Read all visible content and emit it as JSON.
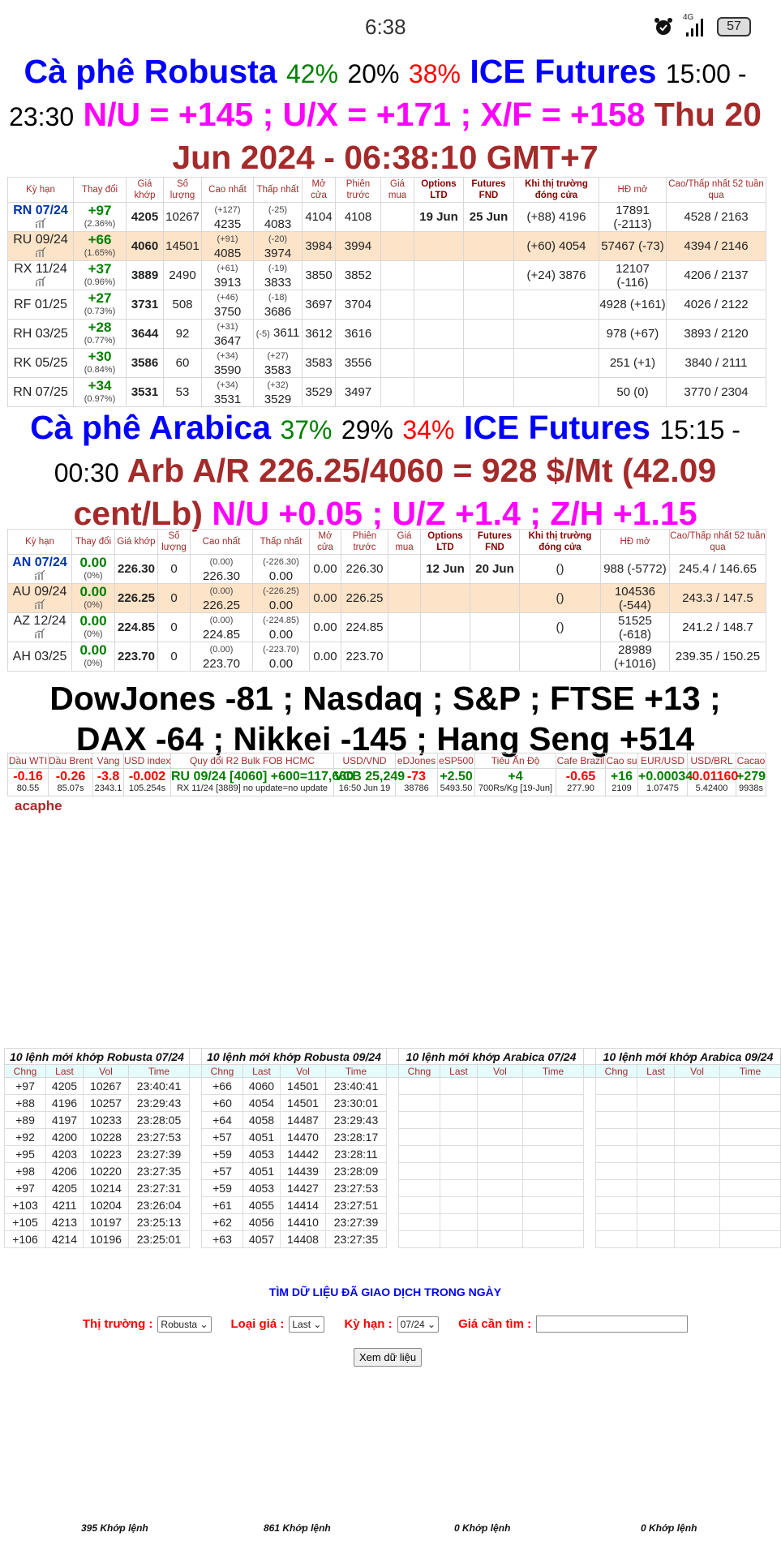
{
  "status_bar": {
    "time": "6:38",
    "network": "4G",
    "battery": "57"
  },
  "robusta_header": {
    "name": "Cà phê Robusta",
    "p1": "42%",
    "p2": "20%",
    "p3": "38%",
    "exchange": "ICE Futures",
    "hours": "15:00 - 23:30",
    "spreads": "N/U = +145 ; U/X = +171 ; X/F = +158",
    "datetime": "Thu 20 Jun 2024 - 06:38:10 GMT+7"
  },
  "futures_columns": [
    "Kỳ hạn",
    "Thay đổi",
    "Giá khớp",
    "Số lượng",
    "Cao nhất",
    "Thấp nhất",
    "Mở cửa",
    "Phiên trước",
    "Giá mua",
    "Options LTD",
    "Futures FND",
    "Khi thị trường đóng cửa",
    "HĐ mở",
    "Cao/Thấp nhất 52 tuần qua"
  ],
  "robusta_rows": [
    {
      "sym": "RN 07/24",
      "chg": "+97",
      "pct": "(2.36%)",
      "last": "4205",
      "vol": "10267",
      "high_d": "(+127)",
      "high": "4235",
      "low_d": "(-25)",
      "low": "4083",
      "open": "4104",
      "prev": "4108",
      "bid": "",
      "ltd": "19 Jun",
      "fnd": "25 Jun",
      "close": "(+88) 4196",
      "oi": "17891 (-2113)",
      "range": "4528 / 2163",
      "chart": true
    },
    {
      "sym": "RU 09/24",
      "chg": "+66",
      "pct": "(1.65%)",
      "last": "4060",
      "vol": "14501",
      "high_d": "(+91)",
      "high": "4085",
      "low_d": "(-20)",
      "low": "3974",
      "open": "3984",
      "prev": "3994",
      "bid": "",
      "ltd": "",
      "fnd": "",
      "close": "(+60) 4054",
      "oi": "57467 (-73)",
      "range": "4394 / 2146",
      "chart": true
    },
    {
      "sym": "RX 11/24",
      "chg": "+37",
      "pct": "(0.96%)",
      "last": "3889",
      "vol": "2490",
      "high_d": "(+61)",
      "high": "3913",
      "low_d": "(-19)",
      "low": "3833",
      "open": "3850",
      "prev": "3852",
      "bid": "",
      "ltd": "",
      "fnd": "",
      "close": "(+24) 3876",
      "oi": "12107 (-116)",
      "range": "4206 / 2137",
      "chart": true
    },
    {
      "sym": "RF 01/25",
      "chg": "+27",
      "pct": "(0.73%)",
      "last": "3731",
      "vol": "508",
      "high_d": "(+46)",
      "high": "3750",
      "low_d": "(-18)",
      "low": "3686",
      "open": "3697",
      "prev": "3704",
      "bid": "",
      "ltd": "",
      "fnd": "",
      "close": "",
      "oi": "4928 (+161)",
      "range": "4026 / 2122",
      "chart": false
    },
    {
      "sym": "RH 03/25",
      "chg": "+28",
      "pct": "(0.77%)",
      "last": "3644",
      "vol": "92",
      "high_d": "(+31)",
      "high": "3647",
      "low_d": "(-5)",
      "low": "3611",
      "low_inline": true,
      "open": "3612",
      "prev": "3616",
      "bid": "",
      "ltd": "",
      "fnd": "",
      "close": "",
      "oi": "978 (+67)",
      "range": "3893 / 2120",
      "chart": false
    },
    {
      "sym": "RK 05/25",
      "chg": "+30",
      "pct": "(0.84%)",
      "last": "3586",
      "vol": "60",
      "high_d": "(+34)",
      "high": "3590",
      "low_d": "(+27)",
      "low": "3583",
      "open": "3583",
      "prev": "3556",
      "bid": "",
      "ltd": "",
      "fnd": "",
      "close": "",
      "oi": "251 (+1)",
      "range": "3840 / 2111",
      "chart": false
    },
    {
      "sym": "RN 07/25",
      "chg": "+34",
      "pct": "(0.97%)",
      "last": "3531",
      "vol": "53",
      "high_d": "(+34)",
      "high": "3531",
      "low_d": "(+32)",
      "low": "3529",
      "open": "3529",
      "prev": "3497",
      "bid": "",
      "ltd": "",
      "fnd": "",
      "close": "",
      "oi": "50 (0)",
      "range": "3770 / 2304",
      "chart": false
    }
  ],
  "arabica_header": {
    "name": "Cà phê Arabica",
    "p1": "37%",
    "p2": "29%",
    "p3": "34%",
    "exchange": "ICE Futures",
    "hours": "15:15 - 00:30",
    "conversion": "Arb A/R 226.25/4060 = 928 $/Mt (42.09 cent/Lb)",
    "spreads": "N/U +0.05 ; U/Z +1.4 ; Z/H +1.15"
  },
  "arabica_rows": [
    {
      "sym": "AN 07/24",
      "chg": "0.00",
      "pct": "(0%)",
      "last": "226.30",
      "vol": "0",
      "high_d": "(0.00)",
      "high": "226.30",
      "low_d": "(-226.30)",
      "low": "0.00",
      "open": "0.00",
      "prev": "226.30",
      "bid": "",
      "ltd": "12 Jun",
      "fnd": "20 Jun",
      "close": "()",
      "oi": "988 (-5772)",
      "range": "245.4 / 146.65",
      "chart": true
    },
    {
      "sym": "AU 09/24",
      "chg": "0.00",
      "pct": "(0%)",
      "last": "226.25",
      "vol": "0",
      "high_d": "(0.00)",
      "high": "226.25",
      "low_d": "(-226.25)",
      "low": "0.00",
      "open": "0.00",
      "prev": "226.25",
      "bid": "",
      "ltd": "",
      "fnd": "",
      "close": "()",
      "oi": "104536 (-544)",
      "range": "243.3 / 147.5",
      "chart": true
    },
    {
      "sym": "AZ 12/24",
      "chg": "0.00",
      "pct": "(0%)",
      "last": "224.85",
      "vol": "0",
      "high_d": "(0.00)",
      "high": "224.85",
      "low_d": "(-224.85)",
      "low": "0.00",
      "open": "0.00",
      "prev": "224.85",
      "bid": "",
      "ltd": "",
      "fnd": "",
      "close": "()",
      "oi": "51525 (-618)",
      "range": "241.2 / 148.7",
      "chart": true
    },
    {
      "sym": "AH 03/25",
      "chg": "0.00",
      "pct": "(0%)",
      "last": "223.70",
      "vol": "0",
      "high_d": "(0.00)",
      "high": "223.70",
      "low_d": "(-223.70)",
      "low": "0.00",
      "open": "0.00",
      "prev": "223.70",
      "bid": "",
      "ltd": "",
      "fnd": "",
      "close": "",
      "oi": "28989 (+1016)",
      "range": "239.35 / 150.25",
      "chart": false
    }
  ],
  "indices_header": "DowJones -81 ; Nasdaq ; S&P ; FTSE +13 ; DAX -64 ; Nikkei -145 ; Hang Seng +514",
  "misc": [
    {
      "label": "Dầu WTI",
      "value": "-0.16",
      "sub": "80.55",
      "color": "#ff0000"
    },
    {
      "label": "Dầu Brent",
      "value": "-0.26",
      "sub": "85.07s",
      "color": "#ff0000"
    },
    {
      "label": "Vàng",
      "value": "-3.8",
      "sub": "2343.1",
      "color": "#ff0000"
    },
    {
      "label": "USD index",
      "value": "-0.002",
      "sub": "105.254s",
      "color": "#ff0000"
    },
    {
      "label": "Quy đổi R2 Bulk FOB HCMC",
      "value": "RU 09/24 [4060] +600=117,660",
      "sub": "RX 11/24 [3889] no update=no update",
      "color": "#008000"
    },
    {
      "label": "USD/VND",
      "value": "VCB 25,249",
      "sub": "16:50 Jun 19",
      "color": "#008000"
    },
    {
      "label": "eDJones",
      "value": "-73",
      "sub": "38786",
      "color": "#ff0000"
    },
    {
      "label": "eSP500",
      "value": "+2.50",
      "sub": "5493.50",
      "color": "#008000"
    },
    {
      "label": "Tiêu Ấn Độ",
      "value": "+4",
      "sub": "700Rs/Kg [19-Jun]",
      "color": "#008000"
    },
    {
      "label": "Cafe Brazil",
      "value": "-0.65",
      "sub": "277.90",
      "color": "#ff0000"
    },
    {
      "label": "Cao su",
      "value": "+16",
      "sub": "2109",
      "color": "#008000"
    },
    {
      "label": "EUR/USD",
      "value": "+0.00034",
      "sub": "1.07475",
      "color": "#008000"
    },
    {
      "label": "USD/BRL",
      "value": "-0.01160",
      "sub": "5.42400",
      "color": "#ff0000"
    },
    {
      "label": "Cacao",
      "value": "+279",
      "sub": "9938s",
      "color": "#008000"
    }
  ],
  "brand": "acaphe",
  "trades": {
    "columns": [
      "Chng",
      "Last",
      "Vol",
      "Time"
    ],
    "blocks": [
      {
        "title": "10 lệnh mới khớp Robusta 07/24",
        "footer": "395 Khớp lệnh",
        "rows": [
          [
            "+97",
            "4205",
            "10267",
            "23:40:41"
          ],
          [
            "+88",
            "4196",
            "10257",
            "23:29:43"
          ],
          [
            "+89",
            "4197",
            "10233",
            "23:28:05"
          ],
          [
            "+92",
            "4200",
            "10228",
            "23:27:53"
          ],
          [
            "+95",
            "4203",
            "10223",
            "23:27:39"
          ],
          [
            "+98",
            "4206",
            "10220",
            "23:27:35"
          ],
          [
            "+97",
            "4205",
            "10214",
            "23:27:31"
          ],
          [
            "+103",
            "4211",
            "10204",
            "23:26:04"
          ],
          [
            "+105",
            "4213",
            "10197",
            "23:25:13"
          ],
          [
            "+106",
            "4214",
            "10196",
            "23:25:01"
          ]
        ]
      },
      {
        "title": "10 lệnh mới khớp Robusta 09/24",
        "footer": "861 Khớp lệnh",
        "rows": [
          [
            "+66",
            "4060",
            "14501",
            "23:40:41"
          ],
          [
            "+60",
            "4054",
            "14501",
            "23:30:01"
          ],
          [
            "+64",
            "4058",
            "14487",
            "23:29:43"
          ],
          [
            "+57",
            "4051",
            "14470",
            "23:28:17"
          ],
          [
            "+59",
            "4053",
            "14442",
            "23:28:11"
          ],
          [
            "+57",
            "4051",
            "14439",
            "23:28:09"
          ],
          [
            "+59",
            "4053",
            "14427",
            "23:27:53"
          ],
          [
            "+61",
            "4055",
            "14414",
            "23:27:51"
          ],
          [
            "+62",
            "4056",
            "14410",
            "23:27:39"
          ],
          [
            "+63",
            "4057",
            "14408",
            "23:27:35"
          ]
        ]
      },
      {
        "title": "10 lệnh mới khớp Arabica 07/24",
        "footer": "0 Khớp lệnh",
        "rows": []
      },
      {
        "title": "10 lệnh mới khớp Arabica 09/24",
        "footer": "0 Khớp lệnh",
        "rows": []
      }
    ]
  },
  "search_form": {
    "title": "TÌM DỮ LIỆU ĐÃ GIAO DỊCH TRONG NGÀY",
    "market_label": "Thị trường :",
    "market_value": "Robusta",
    "price_type_label": "Loại giá :",
    "price_type_value": "Last",
    "term_label": "Kỳ hạn :",
    "term_value": "07/24",
    "price_label": "Giá cần tìm :",
    "price_value": "",
    "submit": "Xem dữ liệu"
  }
}
